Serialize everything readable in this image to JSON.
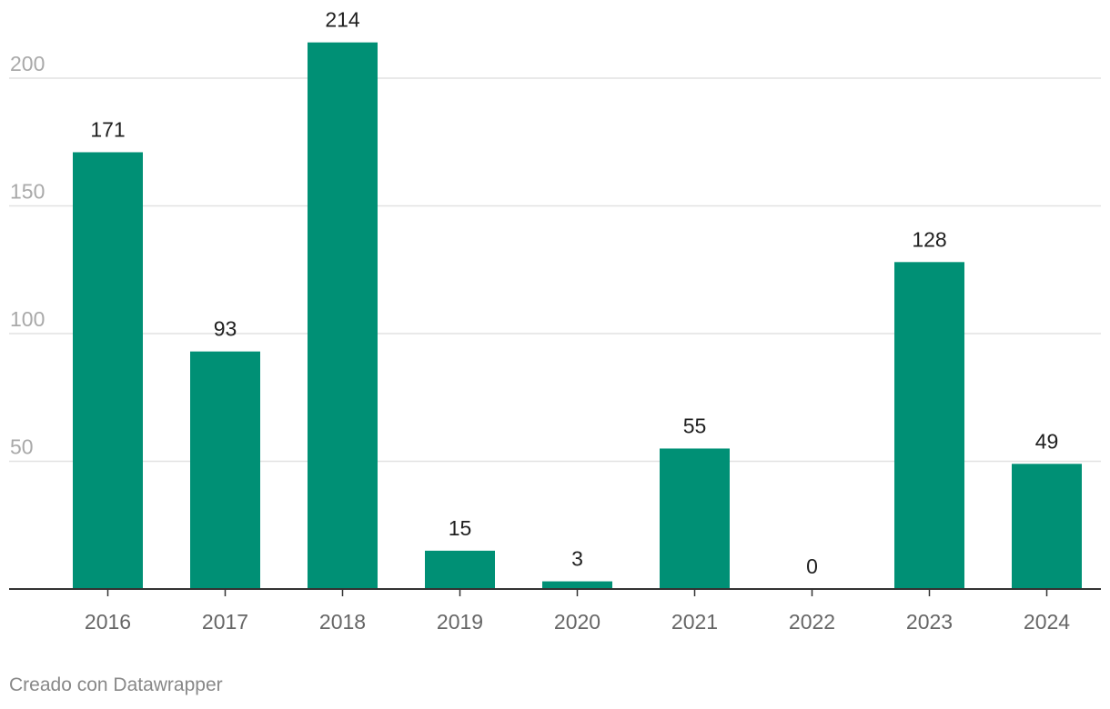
{
  "chart_data": {
    "type": "bar",
    "categories": [
      "2016",
      "2017",
      "2018",
      "2019",
      "2020",
      "2021",
      "2022",
      "2023",
      "2024"
    ],
    "values": [
      171,
      93,
      214,
      15,
      3,
      55,
      0,
      128,
      49
    ],
    "data_labels": [
      "171",
      "93",
      "214",
      "15",
      "3",
      "55",
      "0",
      "128",
      "49"
    ],
    "y_ticks": [
      50,
      100,
      150,
      200
    ],
    "y_tick_labels": [
      "50",
      "100",
      "150",
      "200"
    ],
    "ylim": [
      0,
      214
    ],
    "grid": true,
    "legend": "none",
    "bar_color": "#009075",
    "title": "",
    "xlabel": "",
    "ylabel": ""
  },
  "footer": {
    "credit": "Creado con Datawrapper"
  }
}
